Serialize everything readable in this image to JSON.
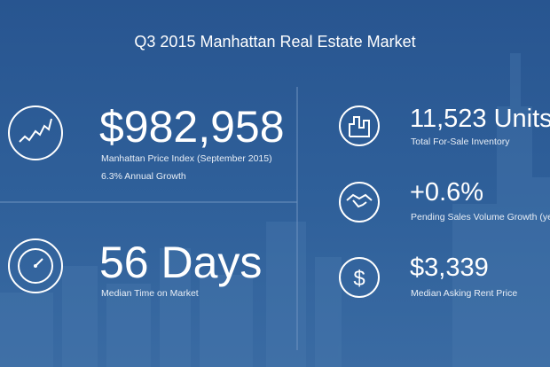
{
  "title": "Q3 2015 Manhattan Real Estate Market",
  "stats": [
    {
      "value": "$982,958",
      "label": "Manhattan Price Index (September 2015)",
      "note": "6.3% Annual Growth"
    },
    {
      "value": "56 Days",
      "label": "Median Time on Market"
    },
    {
      "value": "11,523 Units",
      "label": "Total For-Sale Inventory"
    },
    {
      "value": "+0.6%",
      "label": "Pending Sales Volume Growth (ye"
    },
    {
      "value": "$3,339",
      "label": "Median Asking Rent Price"
    }
  ]
}
